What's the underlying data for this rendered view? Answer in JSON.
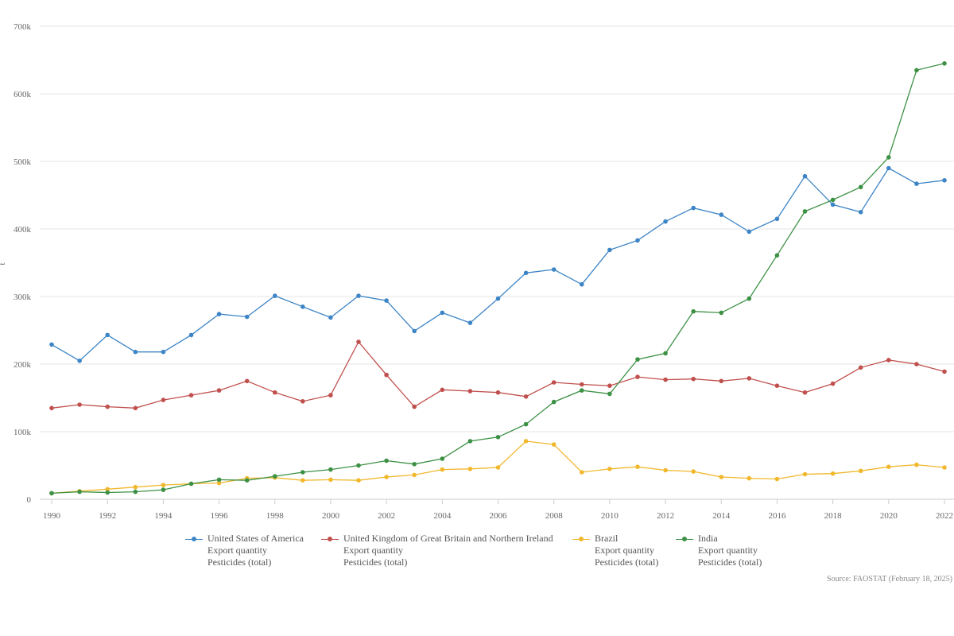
{
  "chart_data": {
    "type": "line",
    "ylabel": "t",
    "yticks": [
      "0",
      "100k",
      "200k",
      "300k",
      "400k",
      "500k",
      "600k",
      "700k"
    ],
    "ylim": [
      0,
      700000
    ],
    "xticks": [
      "1990",
      "1992",
      "1994",
      "1996",
      "1998",
      "2000",
      "2002",
      "2004",
      "2006",
      "2008",
      "2010",
      "2012",
      "2014",
      "2016",
      "2018",
      "2020",
      "2022"
    ],
    "x": [
      1990,
      1991,
      1992,
      1993,
      1994,
      1995,
      1996,
      1997,
      1998,
      1999,
      2000,
      2001,
      2002,
      2003,
      2004,
      2005,
      2006,
      2007,
      2008,
      2009,
      2010,
      2011,
      2012,
      2013,
      2014,
      2015,
      2016,
      2017,
      2018,
      2019,
      2020,
      2021,
      2022
    ],
    "grid": true,
    "legend_position": "bottom",
    "series": [
      {
        "name": "United States of America",
        "element": "Export quantity",
        "item": "Pesticides (total)",
        "color": "#3d85c6",
        "values": [
          229000,
          205000,
          243000,
          218000,
          218000,
          243000,
          274000,
          270000,
          301000,
          285000,
          269000,
          301000,
          294000,
          249000,
          276000,
          261000,
          297000,
          335000,
          340000,
          318000,
          369000,
          383000,
          411000,
          431000,
          421000,
          396000,
          415000,
          478000,
          436000,
          425000,
          490000,
          467000,
          472000
        ]
      },
      {
        "name": "United Kingdom of Great Britain and Northern Ireland",
        "element": "Export quantity",
        "item": "Pesticides (total)",
        "color": "#c0504d",
        "values": [
          135000,
          140000,
          137000,
          135000,
          147000,
          154000,
          161000,
          175000,
          158000,
          145000,
          154000,
          233000,
          184000,
          137000,
          162000,
          160000,
          158000,
          152000,
          173000,
          170000,
          168000,
          181000,
          177000,
          178000,
          175000,
          179000,
          168000,
          158000,
          171000,
          195000,
          206000,
          200000,
          189000
        ]
      },
      {
        "name": "Brazil",
        "element": "Export quantity",
        "item": "Pesticides (total)",
        "color": "#f1b82d",
        "values": [
          9000,
          12000,
          15000,
          18000,
          21000,
          23000,
          24000,
          31000,
          32000,
          28000,
          29000,
          28000,
          33000,
          36000,
          44000,
          45000,
          47000,
          86000,
          81000,
          40000,
          45000,
          48000,
          43000,
          41000,
          33000,
          31000,
          30000,
          37000,
          38000,
          42000,
          48000,
          51000,
          47000
        ]
      },
      {
        "name": "India",
        "element": "Export quantity",
        "item": "Pesticides (total)",
        "color": "#3d9145",
        "values": [
          9000,
          11000,
          10000,
          11000,
          14000,
          23000,
          29000,
          28000,
          34000,
          40000,
          44000,
          50000,
          57000,
          52000,
          60000,
          86000,
          92000,
          111000,
          144000,
          161000,
          156000,
          207000,
          216000,
          278000,
          276000,
          297000,
          361000,
          426000,
          443000,
          462000,
          506000,
          635000,
          645000
        ]
      }
    ]
  },
  "source": "Source: FAOSTAT (February 18, 2025)"
}
